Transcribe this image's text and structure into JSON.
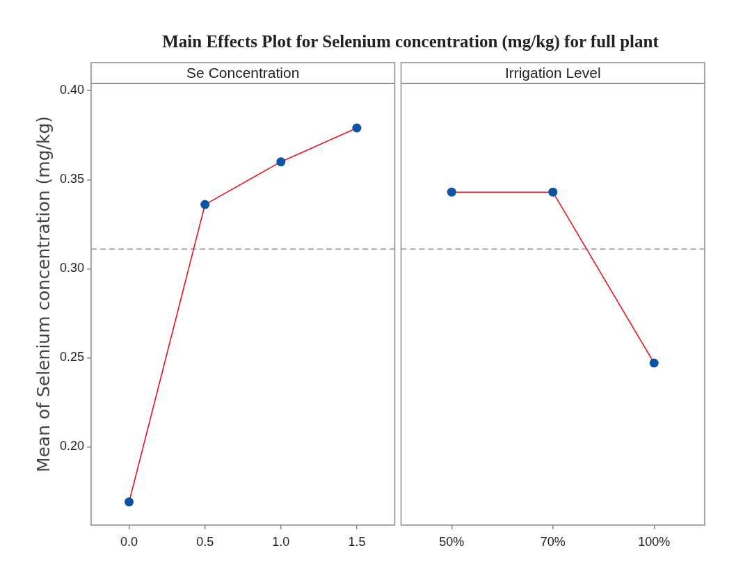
{
  "chart_data": [
    {
      "type": "line",
      "title": "Main Effects Plot for Selenium concentration (mg/kg) for full plant",
      "subtitle": "Se Concentration",
      "ylabel": "Mean of Selenium concentration (mg/kg)",
      "categories": [
        "0.0",
        "0.5",
        "1.0",
        "1.5"
      ],
      "values": [
        0.169,
        0.336,
        0.36,
        0.379
      ],
      "color": "#e3141c",
      "colors": [
        "#0b54a4",
        "#0b54a4",
        "#0b54a4",
        "#0b54a4"
      ],
      "ylim": [
        0.156,
        0.404
      ],
      "yticks": [
        {
          "value": 0.2,
          "label": "0.20"
        },
        0.25,
        {
          "value": 0.3,
          "label": "0.30"
        },
        0.35,
        {
          "value": 0.4,
          "label": "0.40"
        }
      ],
      "ref_lines": [
        {
          "axis": "y",
          "value": 0.311,
          "color": "#a6a6a6",
          "line_style": "dashed"
        }
      ],
      "marker": "circle",
      "line_style": "solid"
    },
    {
      "type": "line",
      "subtitle": "Irrigation Level",
      "categories": [
        "50%",
        "70%",
        "100%"
      ],
      "values": [
        0.343,
        0.343,
        0.247
      ],
      "color": "#e3141c",
      "colors": [
        "#0b54a4",
        "#0b54a4",
        "#0b54a4"
      ],
      "ylim": [
        0.156,
        0.404
      ],
      "tick_labels": "x",
      "ref_lines": [
        {
          "axis": "y",
          "value": 0.311,
          "color": "#a6a6a6",
          "line_style": "dashed"
        }
      ],
      "marker": "circle",
      "line_style": "solid"
    }
  ]
}
